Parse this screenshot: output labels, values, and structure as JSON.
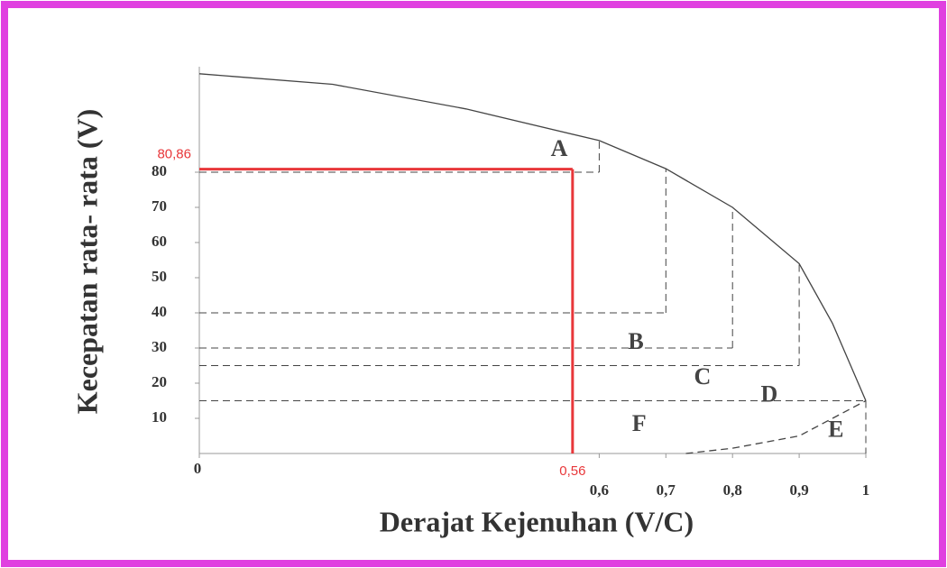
{
  "chart_data": {
    "type": "level-of-service",
    "y_label": "Kecepatan rata- rata (V)",
    "x_label": "Derajat Kejenuhan (V/C)",
    "xlim": [
      0,
      1
    ],
    "ylim": [
      0,
      110
    ],
    "xticks": [
      0,
      {
        "value": 0.6,
        "label": "0,6"
      },
      {
        "value": 0.7,
        "label": "0,7"
      },
      {
        "value": 0.8,
        "label": "0,8"
      },
      {
        "value": 0.9,
        "label": "0,9"
      },
      1
    ],
    "yticks": [
      10,
      20,
      30,
      40,
      50,
      60,
      70,
      80
    ],
    "upper_curve": {
      "x": [
        0,
        0.2,
        0.4,
        0.6,
        0.7,
        0.8,
        0.9,
        0.95,
        1
      ],
      "values": [
        108,
        105,
        98,
        89,
        81,
        70,
        54,
        37,
        15
      ]
    },
    "lower_curve": {
      "x": [
        0.73,
        0.8,
        0.9,
        1
      ],
      "values": [
        0,
        1.5,
        5,
        15
      ]
    },
    "regions": [
      {
        "label": "A",
        "vc": 0.6,
        "speed": 80
      },
      {
        "label": "B",
        "vc": 0.7,
        "speed": 40
      },
      {
        "label": "C",
        "vc": 0.8,
        "speed": 30
      },
      {
        "label": "D",
        "vc": 0.9,
        "speed": 25
      },
      {
        "label": "E",
        "vc": 1,
        "speed": 15
      },
      {
        "label": "F"
      }
    ],
    "reading": {
      "vc": 0.56,
      "speed": 80.86,
      "vc_label": "0,56",
      "speed_label": "80,86",
      "color": "#e8373a"
    },
    "line_color": "#444444"
  }
}
